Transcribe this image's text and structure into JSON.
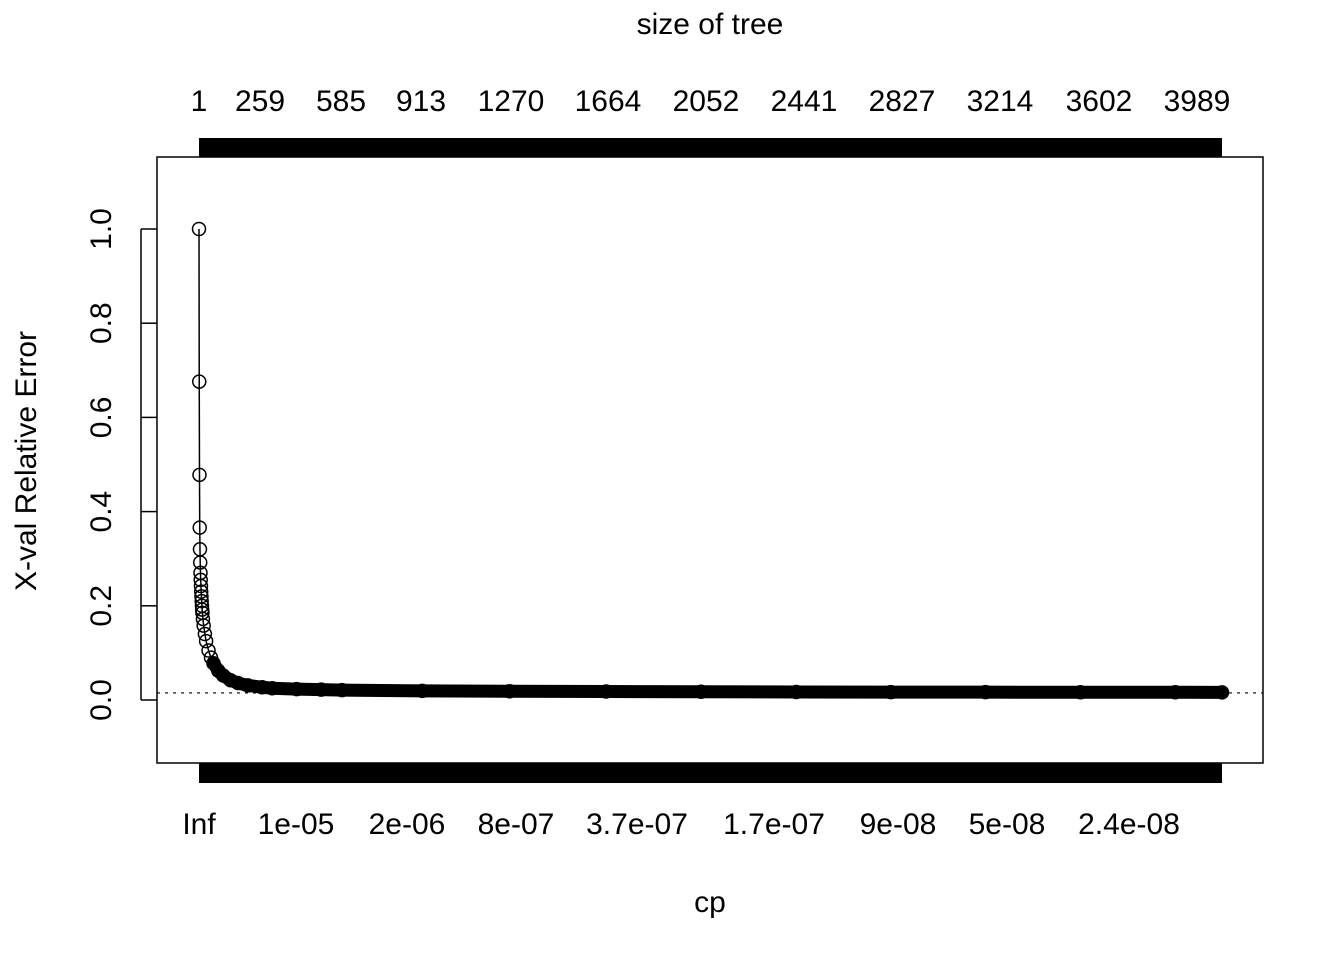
{
  "chart_data": {
    "type": "line",
    "title": "",
    "top_axis_title": "size of tree",
    "xlabel": "cp",
    "ylabel": "X-val Relative Error",
    "top_tick_labels": [
      "1",
      "259",
      "585",
      "913",
      "1270",
      "1664",
      "2052",
      "2441",
      "2827",
      "3214",
      "3602",
      "3989"
    ],
    "bottom_tick_labels": [
      "Inf",
      "1e-05",
      "2e-06",
      "8e-07",
      "3.7e-07",
      "1.7e-07",
      "9e-08",
      "5e-08",
      "2.4e-08"
    ],
    "y_tick_labels": [
      "0.0",
      "0.2",
      "0.4",
      "0.6",
      "0.8",
      "1.0"
    ],
    "y_ticks": [
      0.0,
      0.2,
      0.4,
      0.6,
      0.8,
      1.0
    ],
    "ylim": [
      -0.135,
      1.15
    ],
    "xlim_tree_size": [
      1,
      4180
    ],
    "reference_line_y": 0.015,
    "reference_line_style": "dotted",
    "marker": "open-circle",
    "grid": false,
    "legend": "none",
    "series": [
      {
        "x_tree_size": [
          1,
          2,
          3,
          4,
          5,
          6,
          7,
          8,
          9,
          10,
          11,
          12,
          13,
          14,
          15,
          17,
          20,
          25,
          30,
          40,
          50,
          60,
          80,
          100,
          130,
          160,
          200,
          259,
          300,
          400,
          500,
          585,
          913,
          1270,
          1664,
          2052,
          2441,
          2827,
          3214,
          3602,
          3989,
          4180
        ],
        "y": [
          1.0,
          0.676,
          0.478,
          0.366,
          0.32,
          0.292,
          0.27,
          0.255,
          0.242,
          0.23,
          0.22,
          0.21,
          0.2,
          0.192,
          0.185,
          0.172,
          0.158,
          0.14,
          0.125,
          0.105,
          0.09,
          0.078,
          0.062,
          0.052,
          0.042,
          0.036,
          0.031,
          0.027,
          0.025,
          0.023,
          0.022,
          0.021,
          0.0195,
          0.0185,
          0.018,
          0.0175,
          0.017,
          0.0168,
          0.0166,
          0.0165,
          0.0164,
          0.0163
        ]
      }
    ]
  }
}
